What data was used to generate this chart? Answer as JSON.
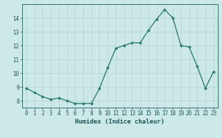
{
  "x": [
    0,
    1,
    2,
    3,
    4,
    5,
    6,
    7,
    8,
    9,
    10,
    11,
    12,
    13,
    14,
    15,
    16,
    17,
    18,
    19,
    20,
    21,
    22,
    23
  ],
  "y": [
    8.9,
    8.6,
    8.3,
    8.1,
    8.2,
    8.0,
    7.8,
    7.8,
    7.8,
    8.9,
    10.4,
    11.8,
    12.0,
    12.2,
    12.2,
    13.1,
    13.9,
    14.6,
    14.0,
    12.0,
    11.9,
    10.5,
    8.9,
    10.1
  ],
  "line_color": "#2e7d6e",
  "marker": "D",
  "marker_size": 2,
  "bg_color": "#cce8e8",
  "grid_color": "#b8d4d4",
  "xlabel": "Humidex (Indice chaleur)",
  "ylim": [
    7.5,
    15.0
  ],
  "xlim": [
    -0.5,
    23.5
  ],
  "yticks": [
    8,
    9,
    10,
    11,
    12,
    13,
    14
  ],
  "xticks": [
    0,
    1,
    2,
    3,
    4,
    5,
    6,
    7,
    8,
    9,
    10,
    11,
    12,
    13,
    14,
    15,
    16,
    17,
    18,
    19,
    20,
    21,
    22,
    23
  ],
  "tick_color": "#1a5555",
  "label_fontsize": 6.5,
  "tick_fontsize": 5.5,
  "line_width": 1.0,
  "spine_color": "#1a5555"
}
